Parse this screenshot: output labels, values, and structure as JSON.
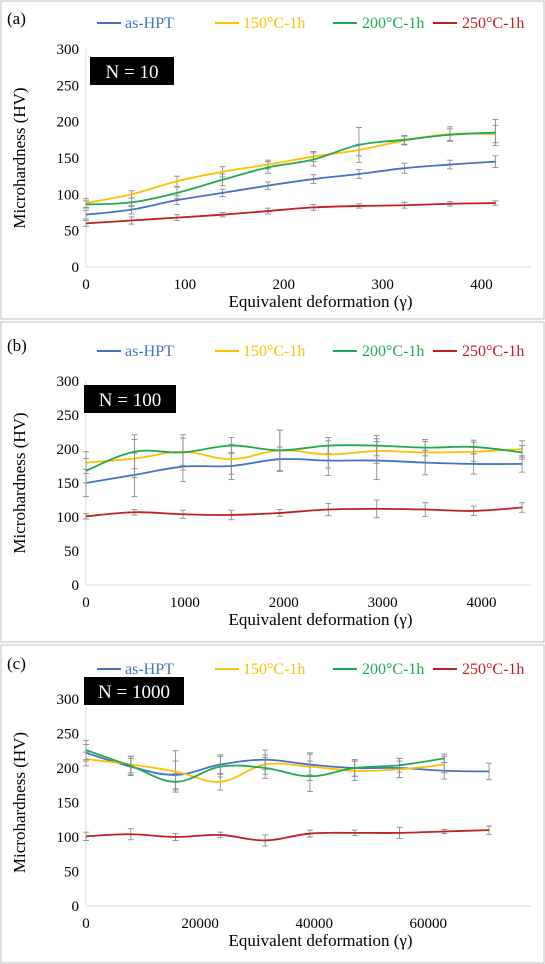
{
  "colors": {
    "as-HPT": "#4472C4",
    "150C": "#FFC000",
    "200C": "#21A94E",
    "250C": "#C0201E"
  },
  "chart_data": [
    {
      "type": "line",
      "panel": "(a)",
      "annotation": "N = 10",
      "xlabel": "Equivalent deformation (γ)",
      "ylabel": "Microhardness (HV)",
      "xlim": [
        0,
        450
      ],
      "ylim": [
        0,
        300
      ],
      "xticks": [
        0,
        100,
        200,
        300,
        400
      ],
      "xtick_labels": [
        "0",
        "100",
        "200",
        "300",
        "400"
      ],
      "yticks": [
        0,
        50,
        100,
        150,
        200,
        250,
        300
      ],
      "ytick_labels": [
        "0",
        "50",
        "100",
        "150",
        "200",
        "250",
        "300"
      ],
      "legend_position": "top",
      "series": [
        {
          "name": "as-HPT",
          "color_key": "as-HPT",
          "x": [
            0,
            46,
            92,
            138,
            184,
            230,
            276,
            322,
            368,
            414
          ],
          "y": [
            72,
            79,
            92,
            102,
            112,
            121,
            128,
            136,
            141,
            145
          ],
          "err": [
            6,
            6,
            6,
            5,
            5,
            6,
            6,
            7,
            6,
            8
          ]
        },
        {
          "name": "150°C-1h",
          "color_key": "150C",
          "x": [
            0,
            46,
            92,
            138,
            184,
            230,
            276,
            322,
            368,
            414
          ],
          "y": [
            88,
            100,
            118,
            131,
            141,
            152,
            161,
            174,
            183,
            183
          ],
          "err": [
            6,
            5,
            7,
            7,
            6,
            7,
            8,
            6,
            10,
            12
          ]
        },
        {
          "name": "200°C-1h",
          "color_key": "200C",
          "x": [
            0,
            46,
            92,
            138,
            184,
            230,
            276,
            322,
            368,
            414
          ],
          "y": [
            86,
            89,
            102,
            120,
            137,
            148,
            168,
            175,
            182,
            185
          ],
          "err": [
            5,
            6,
            8,
            8,
            8,
            9,
            24,
            6,
            8,
            18
          ]
        },
        {
          "name": "250°C-1h",
          "color_key": "250C",
          "x": [
            0,
            46,
            92,
            138,
            184,
            230,
            276,
            322,
            368,
            414
          ],
          "y": [
            60,
            64,
            68,
            72,
            77,
            82,
            84,
            85,
            87,
            88
          ],
          "err": [
            4,
            5,
            4,
            3,
            4,
            4,
            3,
            4,
            3,
            3
          ]
        }
      ]
    },
    {
      "type": "line",
      "panel": "(b)",
      "annotation": "N = 100",
      "xlabel": "Equivalent deformation (γ)",
      "ylabel": "Microhardness (HV)",
      "xlim": [
        0,
        4500
      ],
      "ylim": [
        0,
        300
      ],
      "xticks": [
        0,
        1000,
        2000,
        3000,
        4000
      ],
      "xtick_labels": [
        "0",
        "1000",
        "2000",
        "3000",
        "4000"
      ],
      "yticks": [
        0,
        50,
        100,
        150,
        200,
        250,
        300
      ],
      "ytick_labels": [
        "0",
        "50",
        "100",
        "150",
        "200",
        "250",
        "300"
      ],
      "legend_position": "top",
      "series": [
        {
          "name": "as-HPT",
          "color_key": "as-HPT",
          "x": [
            0,
            490,
            980,
            1470,
            1960,
            2450,
            2940,
            3430,
            3920,
            4410
          ],
          "y": [
            150,
            162,
            174,
            175,
            185,
            183,
            183,
            180,
            178,
            178
          ],
          "err": [
            20,
            32,
            22,
            20,
            18,
            22,
            28,
            18,
            15,
            12
          ]
        },
        {
          "name": "150°C-1h",
          "color_key": "150C",
          "x": [
            0,
            490,
            980,
            1470,
            1960,
            2450,
            2940,
            3430,
            3920,
            4410
          ],
          "y": [
            180,
            186,
            196,
            185,
            198,
            192,
            197,
            195,
            196,
            200
          ],
          "err": [
            16,
            28,
            20,
            22,
            30,
            20,
            18,
            16,
            14,
            12
          ]
        },
        {
          "name": "200°C-1h",
          "color_key": "200C",
          "x": [
            0,
            490,
            980,
            1470,
            1960,
            2450,
            2940,
            3430,
            3920,
            4410
          ],
          "y": [
            168,
            196,
            195,
            205,
            198,
            205,
            205,
            202,
            203,
            195
          ],
          "err": [
            18,
            25,
            26,
            12,
            30,
            12,
            15,
            12,
            10,
            10
          ]
        },
        {
          "name": "250°C-1h",
          "color_key": "250C",
          "x": [
            0,
            490,
            980,
            1470,
            1960,
            2450,
            2940,
            3430,
            3920,
            4410
          ],
          "y": [
            101,
            107,
            104,
            103,
            106,
            111,
            112,
            111,
            109,
            114
          ],
          "err": [
            4,
            4,
            6,
            7,
            5,
            9,
            13,
            10,
            7,
            7
          ]
        }
      ]
    },
    {
      "type": "line",
      "panel": "(c)",
      "annotation": "N = 1000",
      "xlabel": "Equivalent deformation (γ)",
      "ylabel": "Microhardness (HV)",
      "xlim": [
        0,
        78000
      ],
      "ylim": [
        0,
        300
      ],
      "xticks": [
        0,
        20000,
        40000,
        60000
      ],
      "xtick_labels": [
        "0",
        "20000",
        "40000",
        "60000"
      ],
      "yticks": [
        0,
        50,
        100,
        150,
        200,
        250,
        300
      ],
      "ytick_labels": [
        "0",
        "50",
        "100",
        "150",
        "200",
        "250",
        "300"
      ],
      "legend_position": "top",
      "series": [
        {
          "name": "as-HPT",
          "color_key": "as-HPT",
          "x": [
            0,
            7850,
            15700,
            23550,
            31400,
            39250,
            47100,
            54950,
            62800,
            70650
          ],
          "y": [
            222,
            202,
            190,
            205,
            212,
            205,
            200,
            200,
            196,
            195
          ],
          "err": [
            12,
            12,
            20,
            14,
            14,
            15,
            12,
            14,
            12,
            12
          ]
        },
        {
          "name": "150°C-1h",
          "color_key": "150C",
          "x": [
            0,
            7850,
            15700,
            23550,
            31400,
            39250,
            47100,
            54950,
            62800
          ],
          "y": [
            213,
            205,
            195,
            180,
            205,
            202,
            196,
            198,
            205
          ],
          "err": [
            10,
            12,
            30,
            12,
            14,
            20,
            14,
            12,
            12
          ]
        },
        {
          "name": "200°C-1h",
          "color_key": "200C",
          "x": [
            0,
            7850,
            15700,
            23550,
            31400,
            39250,
            47100,
            54950,
            62800
          ],
          "y": [
            226,
            203,
            180,
            202,
            200,
            188,
            200,
            204,
            214
          ],
          "err": [
            14,
            14,
            12,
            15,
            15,
            22,
            12,
            10,
            6
          ]
        },
        {
          "name": "250°C-1h",
          "color_key": "250C",
          "x": [
            0,
            7850,
            15700,
            23550,
            31400,
            39250,
            47100,
            54950,
            62800,
            70650
          ],
          "y": [
            101,
            104,
            100,
            103,
            95,
            105,
            106,
            106,
            108,
            110
          ],
          "err": [
            6,
            8,
            5,
            4,
            8,
            5,
            4,
            8,
            3,
            6
          ]
        }
      ]
    }
  ]
}
